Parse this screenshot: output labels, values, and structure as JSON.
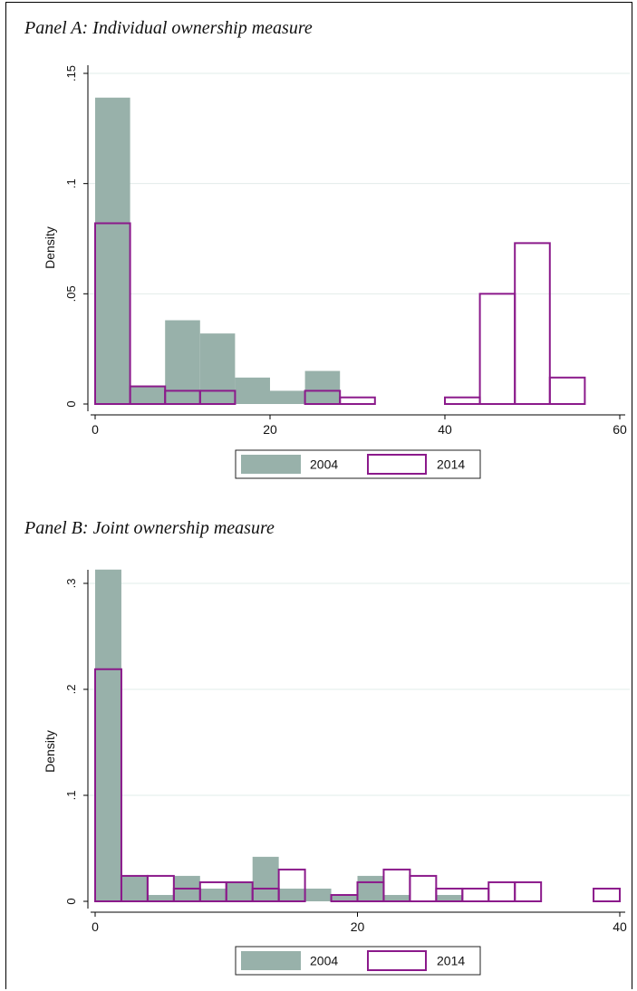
{
  "colors": {
    "fill_2004": "#98b1aa",
    "outline_2014": "#8b1a8b",
    "grid": "#e2ecea",
    "axis": "#000000"
  },
  "chart_data": [
    {
      "type": "bar",
      "title": "Panel A: Individual ownership measure",
      "ylabel": "Density",
      "xlim": [
        0,
        60
      ],
      "ylim": [
        0,
        0.15
      ],
      "xticks": [
        0,
        20,
        40,
        60
      ],
      "xtick_labels": [
        "0",
        "20",
        "40",
        "60"
      ],
      "yticks": [
        0,
        0.05,
        0.1,
        0.15
      ],
      "ytick_labels": [
        "0",
        ".05",
        ".1",
        ".15"
      ],
      "grid": true,
      "legend_position": "bottom",
      "series": [
        {
          "name": "2004",
          "style": "filled",
          "bins": [
            {
              "x0": 0,
              "x1": 4,
              "value": 0.139
            },
            {
              "x0": 4,
              "x1": 8,
              "value": 0.008
            },
            {
              "x0": 8,
              "x1": 12,
              "value": 0.038
            },
            {
              "x0": 12,
              "x1": 16,
              "value": 0.032
            },
            {
              "x0": 16,
              "x1": 20,
              "value": 0.012
            },
            {
              "x0": 20,
              "x1": 24,
              "value": 0.006
            },
            {
              "x0": 24,
              "x1": 28,
              "value": 0.015
            }
          ]
        },
        {
          "name": "2014",
          "style": "outline",
          "bins": [
            {
              "x0": 0,
              "x1": 4,
              "value": 0.082
            },
            {
              "x0": 4,
              "x1": 8,
              "value": 0.008
            },
            {
              "x0": 8,
              "x1": 12,
              "value": 0.006
            },
            {
              "x0": 12,
              "x1": 16,
              "value": 0.006
            },
            {
              "x0": 24,
              "x1": 28,
              "value": 0.006
            },
            {
              "x0": 28,
              "x1": 32,
              "value": 0.003
            },
            {
              "x0": 40,
              "x1": 44,
              "value": 0.003
            },
            {
              "x0": 44,
              "x1": 48,
              "value": 0.05
            },
            {
              "x0": 48,
              "x1": 52,
              "value": 0.073
            },
            {
              "x0": 52,
              "x1": 56,
              "value": 0.012
            }
          ]
        }
      ]
    },
    {
      "type": "bar",
      "title": "Panel B: Joint ownership measure",
      "ylabel": "Density",
      "xlim": [
        0,
        40
      ],
      "ylim": [
        0,
        0.3
      ],
      "xticks": [
        0,
        20,
        40
      ],
      "xtick_labels": [
        "0",
        "20",
        "40"
      ],
      "yticks": [
        0,
        0.1,
        0.2,
        0.3
      ],
      "ytick_labels": [
        "0",
        ".1",
        ".2",
        ".3"
      ],
      "grid": true,
      "legend_position": "bottom",
      "series": [
        {
          "name": "2004",
          "style": "filled",
          "bins": [
            {
              "x0": 0,
              "x1": 2,
              "value": 0.313
            },
            {
              "x0": 2,
              "x1": 4,
              "value": 0.024
            },
            {
              "x0": 4,
              "x1": 6,
              "value": 0.006
            },
            {
              "x0": 6,
              "x1": 8,
              "value": 0.024
            },
            {
              "x0": 8,
              "x1": 10,
              "value": 0.012
            },
            {
              "x0": 10,
              "x1": 12,
              "value": 0.018
            },
            {
              "x0": 12,
              "x1": 14,
              "value": 0.042
            },
            {
              "x0": 14,
              "x1": 16,
              "value": 0.012
            },
            {
              "x0": 16,
              "x1": 18,
              "value": 0.012
            },
            {
              "x0": 18,
              "x1": 20,
              "value": 0.006
            },
            {
              "x0": 20,
              "x1": 22,
              "value": 0.024
            },
            {
              "x0": 22,
              "x1": 24,
              "value": 0.006
            },
            {
              "x0": 26,
              "x1": 28,
              "value": 0.006
            }
          ]
        },
        {
          "name": "2014",
          "style": "outline",
          "bins": [
            {
              "x0": 0,
              "x1": 2,
              "value": 0.219
            },
            {
              "x0": 2,
              "x1": 4,
              "value": 0.024
            },
            {
              "x0": 4,
              "x1": 6,
              "value": 0.024
            },
            {
              "x0": 6,
              "x1": 8,
              "value": 0.012
            },
            {
              "x0": 8,
              "x1": 10,
              "value": 0.018
            },
            {
              "x0": 10,
              "x1": 12,
              "value": 0.018
            },
            {
              "x0": 12,
              "x1": 14,
              "value": 0.012
            },
            {
              "x0": 14,
              "x1": 16,
              "value": 0.03
            },
            {
              "x0": 18,
              "x1": 20,
              "value": 0.006
            },
            {
              "x0": 20,
              "x1": 22,
              "value": 0.018
            },
            {
              "x0": 22,
              "x1": 24,
              "value": 0.03
            },
            {
              "x0": 24,
              "x1": 26,
              "value": 0.024
            },
            {
              "x0": 26,
              "x1": 28,
              "value": 0.012
            },
            {
              "x0": 28,
              "x1": 30,
              "value": 0.012
            },
            {
              "x0": 30,
              "x1": 32,
              "value": 0.018
            },
            {
              "x0": 32,
              "x1": 34,
              "value": 0.018
            },
            {
              "x0": 38,
              "x1": 40,
              "value": 0.012
            }
          ]
        }
      ]
    }
  ]
}
